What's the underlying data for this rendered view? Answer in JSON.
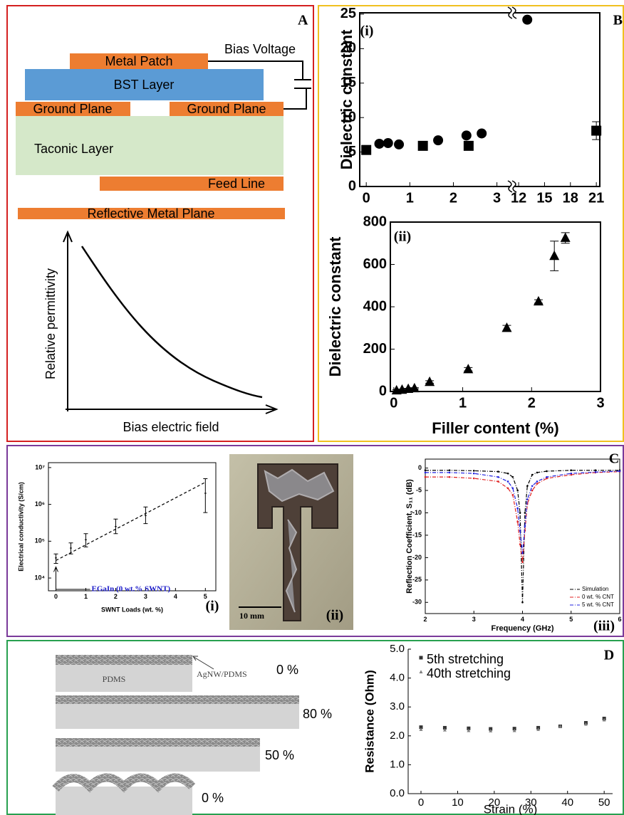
{
  "panel_a": {
    "label": "A",
    "layers": {
      "metal_patch": "Metal Patch",
      "bst": "BST Layer",
      "ground_left": "Ground Plane",
      "ground_right": "Ground Plane",
      "taconic": "Taconic Layer",
      "feed": "Feed Line",
      "reflective": "Reflective Metal Plane"
    },
    "bias": "Bias Voltage",
    "y_label": "Relative permittivity",
    "x_label": "Bias electric field"
  },
  "chart_data": [
    {
      "type": "scatter",
      "tag": "(i)",
      "label": "B",
      "y_label": "Dielectric constant",
      "xlim": [
        -0.15,
        21.4
      ],
      "xbreak": [
        3.3,
        11.5
      ],
      "xticks": [
        0,
        1,
        2,
        3,
        12,
        15,
        18,
        21
      ],
      "ylim": [
        0,
        25.2
      ],
      "yticks": [
        0,
        5,
        10,
        15,
        20,
        25
      ],
      "series": [
        {
          "marker": "circle",
          "color": "#000000",
          "x": [
            0.3,
            0.5,
            0.75,
            1.65,
            2.3,
            2.65,
            13
          ],
          "values": [
            6.2,
            6.3,
            6.1,
            6.7,
            7.4,
            7.7,
            24.2
          ]
        },
        {
          "marker": "square",
          "color": "#000000",
          "x": [
            0.0,
            1.3,
            2.35,
            21
          ],
          "values": [
            5.3,
            5.9,
            5.9,
            8.1
          ],
          "errors": [
            0.5,
            0.5,
            0.4,
            1.3
          ]
        }
      ]
    },
    {
      "type": "scatter",
      "tag": "(ii)",
      "y_label": "Dielectric constant",
      "x_label": "Filler content (%)",
      "xlim": [
        -0.05,
        3
      ],
      "xticks": [
        0,
        1,
        2,
        3
      ],
      "ylim": [
        0,
        800
      ],
      "yticks": [
        0,
        200,
        400,
        600,
        800
      ],
      "series": [
        {
          "marker": "triangle",
          "color": "#000000",
          "x": [
            0.04,
            0.12,
            0.21,
            0.3,
            0.52,
            1.08,
            1.64,
            2.1,
            2.33,
            2.49
          ],
          "values": [
            5,
            8,
            12,
            15,
            45,
            105,
            300,
            425,
            640,
            725
          ],
          "errors": [
            3,
            3,
            3,
            3,
            6,
            8,
            12,
            8,
            70,
            25
          ]
        }
      ]
    },
    {
      "type": "scatter",
      "tag": "(i)",
      "y_label": "Electrical conductivity (S/cm)",
      "x_label": "SWNT Loads (wt. %)",
      "annotation": {
        "text": "EGaIn (0 wt.% SWNT)",
        "color": "#1a1ac8"
      },
      "xlim": [
        -0.25,
        5.35
      ],
      "xticks": [
        0,
        1,
        2,
        3,
        4,
        5
      ],
      "ylog": true,
      "ylim": [
        4500,
        13600000
      ],
      "yticks": [
        {
          "value": 10000,
          "label": "10⁴"
        },
        {
          "value": 100000,
          "label": "10⁵"
        },
        {
          "value": 1000000,
          "label": "10⁶"
        },
        {
          "value": 10000000,
          "label": "10⁷"
        }
      ],
      "series": [
        {
          "marker": "none",
          "color": "#000000",
          "x": [
            0,
            0.5,
            1,
            2,
            3,
            5
          ],
          "values": [
            35000,
            65000,
            110000,
            250000,
            500000,
            2000000
          ],
          "lower": [
            25000,
            45000,
            70000,
            160000,
            300000,
            600000
          ],
          "upper": [
            45000,
            90000,
            160000,
            400000,
            850000,
            5000000
          ]
        },
        {
          "marker": "none",
          "style": "dashed",
          "color": "#000000",
          "x": [
            0,
            5
          ],
          "values": [
            30000,
            4000000
          ]
        }
      ]
    },
    {
      "type": "line",
      "tag": "(iii)",
      "y_label": "Reflection Coefficient, S₁₁ (dB)",
      "x_label": "Frequency (GHz)",
      "legend": "lower right",
      "xlim": [
        2,
        6
      ],
      "xticks": [
        2,
        3,
        4,
        5,
        6
      ],
      "ylim": [
        -32.5,
        2
      ],
      "yticks": [
        0,
        -5,
        -10,
        -15,
        -20,
        -25,
        -30
      ],
      "x": [
        2,
        2.5,
        3,
        3.5,
        3.7,
        3.8,
        3.9,
        3.95,
        4,
        4.05,
        4.1,
        4.2,
        4.3,
        4.5,
        5,
        5.5,
        6
      ],
      "series": [
        {
          "name": "Simulation",
          "color": "#000000",
          "style": "dashdot",
          "marker": "dot",
          "values": [
            -0.5,
            -0.5,
            -0.6,
            -0.8,
            -1.2,
            -2,
            -5,
            -10,
            -30,
            -10,
            -4,
            -1.5,
            -1,
            -0.7,
            -0.5,
            -0.5,
            -0.5
          ]
        },
        {
          "name": "0 wt. % CNT",
          "color": "#e02020",
          "style": "dashdot",
          "marker": "dot",
          "values": [
            -2,
            -2,
            -2.3,
            -3,
            -4.5,
            -6,
            -12,
            -17,
            -21,
            -14,
            -8,
            -5,
            -3.5,
            -2.3,
            -1.5,
            -1,
            -0.8
          ]
        },
        {
          "name": "5 wt. % CNT",
          "color": "#2020e0",
          "style": "dashdot",
          "marker": "dot",
          "values": [
            -1,
            -1,
            -1.2,
            -2,
            -3,
            -4.5,
            -9,
            -14,
            -19,
            -13,
            -7,
            -4,
            -3,
            -2,
            -1.2,
            -0.9,
            -0.7
          ]
        }
      ]
    },
    {
      "type": "scatter",
      "y_label": "Resistance (Ohm)",
      "x_label": "Strain (%)",
      "legend": "upper left",
      "xlim": [
        -3.5,
        52.3
      ],
      "xticks": [
        0,
        10,
        20,
        30,
        40,
        50
      ],
      "ylim": [
        0,
        5
      ],
      "yticks": [
        {
          "value": 0,
          "label": "0.0"
        },
        {
          "value": 1,
          "label": "1.0"
        },
        {
          "value": 2,
          "label": "2.0"
        },
        {
          "value": 3,
          "label": "3.0"
        },
        {
          "value": 4,
          "label": "4.0"
        },
        {
          "value": 5,
          "label": "5.0"
        }
      ],
      "x": [
        0,
        6.5,
        13,
        19,
        25.5,
        32,
        38,
        45,
        50
      ],
      "series": [
        {
          "name": "5th stretching",
          "marker": "square",
          "color": "#333333",
          "values": [
            2.3,
            2.28,
            2.26,
            2.24,
            2.25,
            2.28,
            2.33,
            2.45,
            2.6
          ]
        },
        {
          "name": "40th stretching",
          "marker": "triangle",
          "color": "#808080",
          "values": [
            2.22,
            2.2,
            2.18,
            2.17,
            2.18,
            2.22,
            2.32,
            2.4,
            2.55
          ]
        }
      ]
    }
  ],
  "panel_c": {
    "label": "C",
    "photo_tag": "(ii)",
    "scale_bar": "10 mm"
  },
  "panel_d": {
    "label": "D",
    "substrate": "PDMS",
    "film": "AgNW/PDMS",
    "strains": [
      "0 %",
      "80 %",
      "50 %",
      "0 %"
    ]
  }
}
